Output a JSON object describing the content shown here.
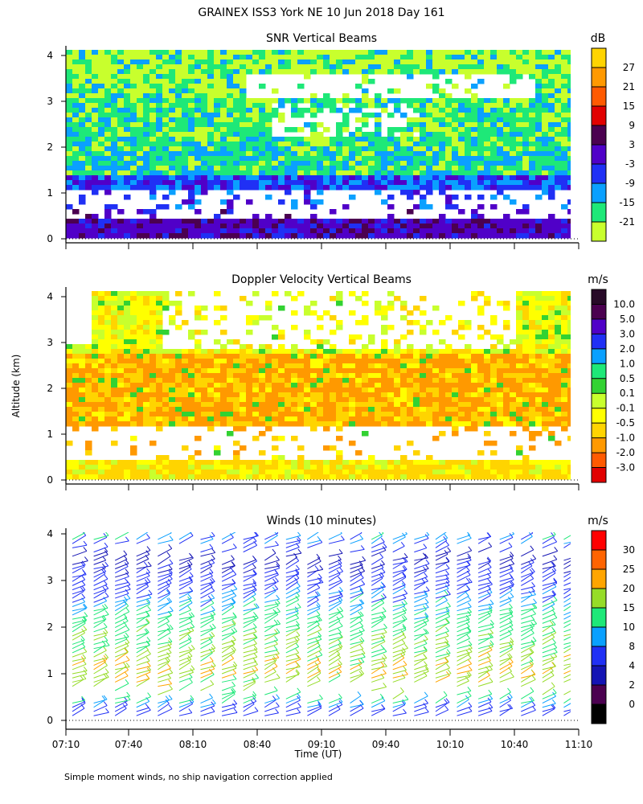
{
  "figure": {
    "title": "GRAINEX ISS3 York NE  10 Jun 2018 Day 161",
    "shared_ylabel": "Altitude (km)",
    "shared_xlabel": "Time (UT)",
    "footnote": "Simple moment winds, no ship navigation correction applied",
    "x_ticks": [
      "07:10",
      "07:40",
      "08:10",
      "08:40",
      "09:10",
      "09:40",
      "10:10",
      "10:40",
      "11:10"
    ],
    "y_ticks": [
      "0",
      "1",
      "2",
      "3",
      "4"
    ]
  },
  "chart_data": [
    {
      "type": "heatmap",
      "title": "SNR Vertical Beams",
      "unit": "dB",
      "xlim": [
        "07:10",
        "11:10"
      ],
      "ylim": [
        0,
        4
      ],
      "colorbar": {
        "labels": [
          "27",
          "21",
          "15",
          "9",
          "3",
          "-3",
          "-9",
          "-15",
          "-21"
        ],
        "colors": [
          "#FFD400",
          "#FF9900",
          "#FF5A00",
          "#E10000",
          "#4B0050",
          "#5000C8",
          "#2030F5",
          "#0AA0FF",
          "#1EE878",
          "#C8FF2D"
        ]
      },
      "field_summary": [
        {
          "altitude_km": [
            0.1,
            0.5
          ],
          "snr_db": "3 to 9",
          "note": "strong layer near surface, gaps near 08:40-10:10"
        },
        {
          "altitude_km": [
            0.5,
            1.2
          ],
          "snr_db": "no data",
          "note": "large gap band"
        },
        {
          "altitude_km": [
            1.0,
            1.4
          ],
          "snr_db": "-3 to 3",
          "note": "before 07:40 and after 10:10"
        },
        {
          "altitude_km": [
            1.2,
            3.0
          ],
          "snr_db": "-15 to -3"
        },
        {
          "altitude_km": [
            3.0,
            4.0
          ],
          "snr_db": "-21 to -9",
          "note": "patchy, gaps near 3.5 km"
        }
      ]
    },
    {
      "type": "heatmap",
      "title": "Doppler Velocity Vertical Beams",
      "unit": "m/s",
      "xlim": [
        "07:10",
        "11:10"
      ],
      "ylim": [
        0,
        4
      ],
      "colorbar": {
        "labels": [
          "10.0",
          "5.0",
          "3.0",
          "2.0",
          "1.0",
          "0.5",
          "0.1",
          "-0.1",
          "-0.5",
          "-1.0",
          "-2.0",
          "-3.0"
        ],
        "colors": [
          "#280A28",
          "#4B0050",
          "#5000C8",
          "#2030F5",
          "#0AA0FF",
          "#1EE878",
          "#32D232",
          "#C8FF2D",
          "#FFFF00",
          "#FFD400",
          "#FF9900",
          "#FF5A00",
          "#E10000"
        ]
      },
      "field_summary": [
        {
          "altitude_km": [
            0.1,
            0.5
          ],
          "velocity_ms": "-1.0 to -0.1"
        },
        {
          "altitude_km": [
            0.5,
            1.2
          ],
          "velocity_ms": "no data",
          "note": "gap band"
        },
        {
          "altitude_km": [
            1.2,
            2.8
          ],
          "velocity_ms": "-2.0 to -0.5",
          "note": "mostly downward (orange)"
        },
        {
          "altitude_km": [
            2.8,
            4.0
          ],
          "velocity_ms": "-1.0 to 0.1",
          "note": "patchy"
        }
      ]
    },
    {
      "type": "wind_barbs",
      "title": "Winds (10 minutes)",
      "unit": "m/s",
      "xlim": [
        "07:10",
        "11:10"
      ],
      "ylim": [
        0,
        4
      ],
      "colorbar": {
        "labels": [
          "30",
          "25",
          "20",
          "15",
          "10",
          "8",
          "4",
          "2",
          "0"
        ],
        "colors": [
          "#FF0000",
          "#FF6400",
          "#FFA500",
          "#96DC28",
          "#1EE878",
          "#0AA0FF",
          "#2030F5",
          "#1414B4",
          "#4B0050",
          "#000000"
        ]
      },
      "profile_times": [
        "07:10",
        "07:20",
        "07:30",
        "07:40",
        "07:50",
        "08:00",
        "08:10",
        "08:20",
        "08:30",
        "08:40",
        "08:50",
        "09:00",
        "09:10",
        "09:20",
        "09:30",
        "09:40",
        "09:50",
        "10:00",
        "10:10",
        "10:20",
        "10:30",
        "10:40",
        "10:50",
        "11:00"
      ],
      "speed_profile": [
        {
          "altitude_km": 0.2,
          "speed_ms": 6
        },
        {
          "altitude_km": 0.5,
          "speed_ms": 14
        },
        {
          "altitude_km": 1.0,
          "speed_ms": 20
        },
        {
          "altitude_km": 1.5,
          "speed_ms": 16
        },
        {
          "altitude_km": 2.0,
          "speed_ms": 13
        },
        {
          "altitude_km": 2.5,
          "speed_ms": 9
        },
        {
          "altitude_km": 3.0,
          "speed_ms": 5
        },
        {
          "altitude_km": 3.5,
          "speed_ms": 3
        },
        {
          "altitude_km": 3.9,
          "speed_ms": 9
        }
      ]
    }
  ]
}
